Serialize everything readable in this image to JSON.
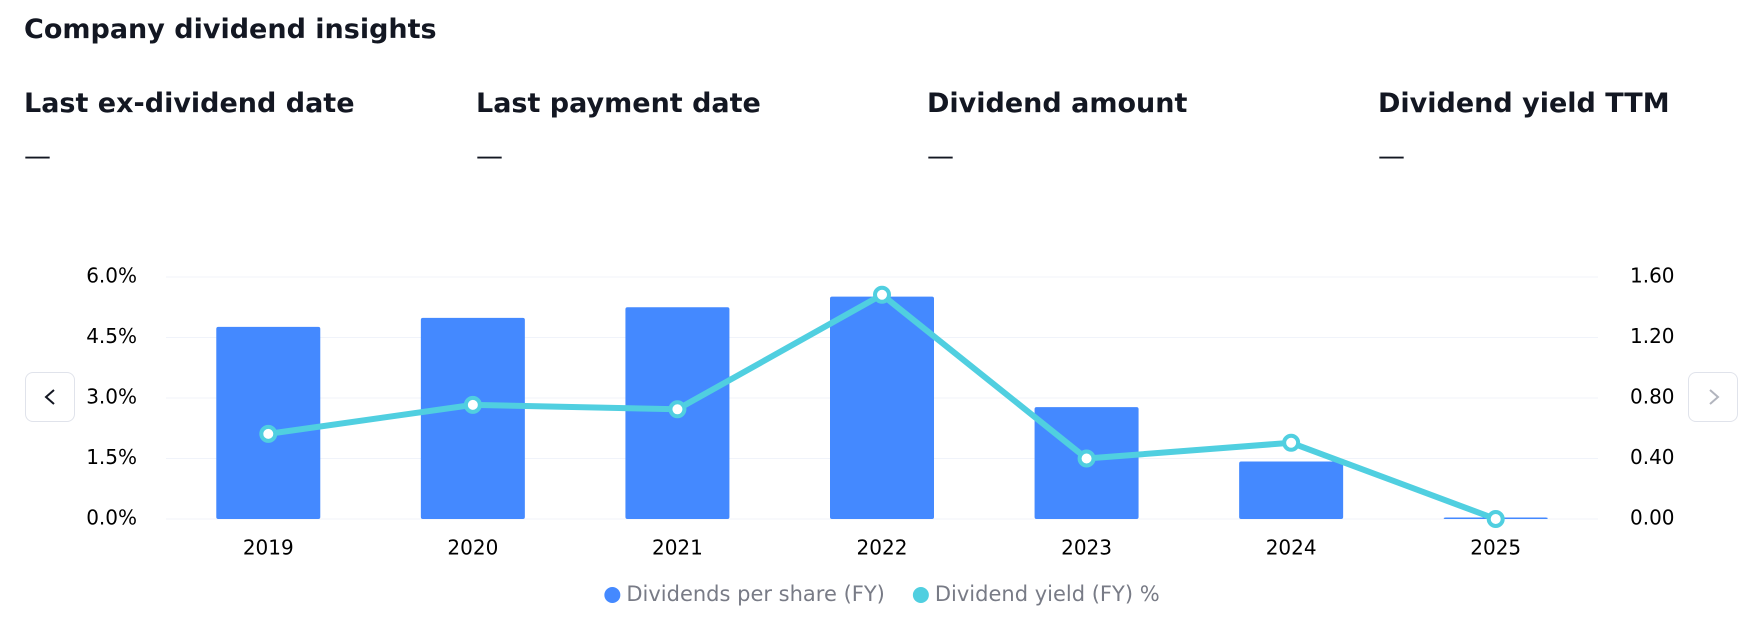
{
  "header": {
    "title": "Company dividend insights"
  },
  "stats": [
    {
      "label": "Last ex-dividend date",
      "value": "—"
    },
    {
      "label": "Last payment date",
      "value": "—"
    },
    {
      "label": "Dividend amount",
      "value": "—"
    },
    {
      "label": "Dividend yield TTM",
      "value": "—"
    }
  ],
  "chart_data": {
    "type": "bar",
    "categories": [
      "2019",
      "2020",
      "2021",
      "2022",
      "2023",
      "2024",
      "2025"
    ],
    "series": [
      {
        "name": "Dividends per share (FY)",
        "type": "bar",
        "axis": "y2",
        "color": "#4489ff",
        "values": [
          1.27,
          1.33,
          1.4,
          1.47,
          0.74,
          0.38,
          0.01
        ]
      },
      {
        "name": "Dividend yield (FY) %",
        "type": "line",
        "color": "#50cfe0",
        "values": [
          2.11,
          2.83,
          2.72,
          5.56,
          1.5,
          1.89,
          0
        ]
      }
    ],
    "ylim": [
      0,
      6
    ],
    "yticks": [
      {
        "value": 0,
        "label": "0.0%"
      },
      {
        "value": 1.5,
        "label": "1.5%"
      },
      {
        "value": 3,
        "label": "3.0%"
      },
      {
        "value": 4.5,
        "label": "4.5%"
      },
      {
        "value": 6,
        "label": "6.0%"
      }
    ],
    "y2lim": [
      0,
      1.6
    ],
    "y2ticks": [
      {
        "value": 0,
        "label": "0.00"
      },
      {
        "value": 0.4,
        "label": "0.40"
      },
      {
        "value": 0.8,
        "label": "0.80"
      },
      {
        "value": 1.2,
        "label": "1.20"
      },
      {
        "value": 1.6,
        "label": "1.60"
      }
    ],
    "grid": true,
    "legend": "bottom"
  }
}
